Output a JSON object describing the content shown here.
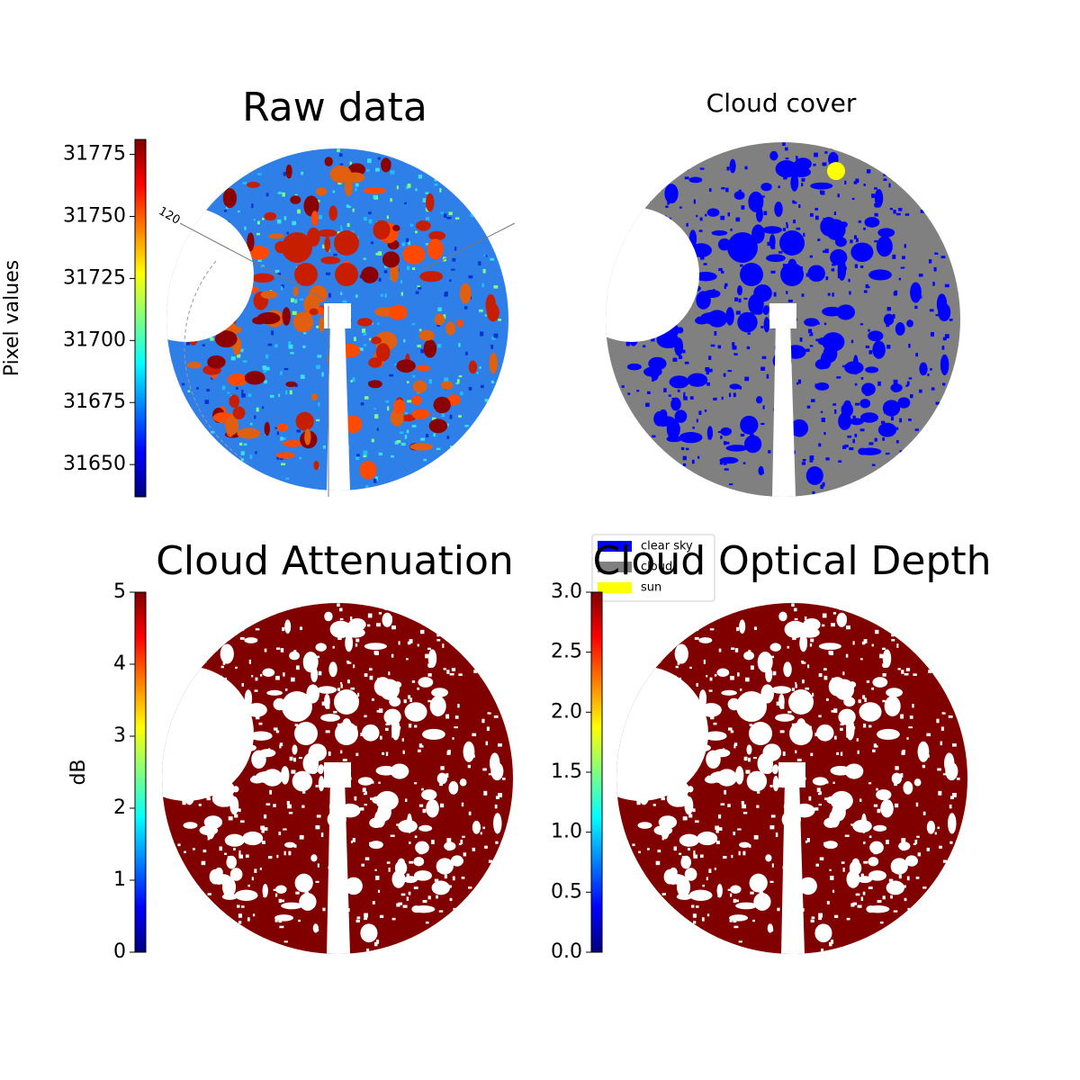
{
  "chart_data": [
    {
      "type": "image",
      "title": "Raw data",
      "ylabel": "Pixel values",
      "colormap": "jet",
      "ylim": [
        31637,
        31781
      ],
      "yticks": [
        31650,
        31675,
        31700,
        31725,
        31750,
        31775
      ],
      "annotations": [
        "120"
      ]
    },
    {
      "type": "image",
      "title": "Cloud cover",
      "series": [
        {
          "name": "clear sky",
          "color": "#0000ff"
        },
        {
          "name": "cloud",
          "color": "#808080"
        },
        {
          "name": "sun",
          "color": "#ffff00"
        }
      ]
    },
    {
      "type": "image",
      "title": "Cloud Attenuation",
      "ylabel": "dB",
      "colormap": "jet",
      "ylim": [
        0,
        5
      ],
      "yticks": [
        0,
        1,
        2,
        3,
        4,
        5
      ]
    },
    {
      "type": "image",
      "title": "Cloud Optical Depth",
      "colormap": "jet",
      "ylim": [
        0,
        3
      ],
      "yticks": [
        {
          "value": 0,
          "label": "0.0"
        },
        0.5,
        {
          "value": 1,
          "label": "1.0"
        },
        1.5,
        {
          "value": 2,
          "label": "2.0"
        },
        2.5,
        {
          "value": 3,
          "label": "3.0"
        }
      ]
    }
  ]
}
